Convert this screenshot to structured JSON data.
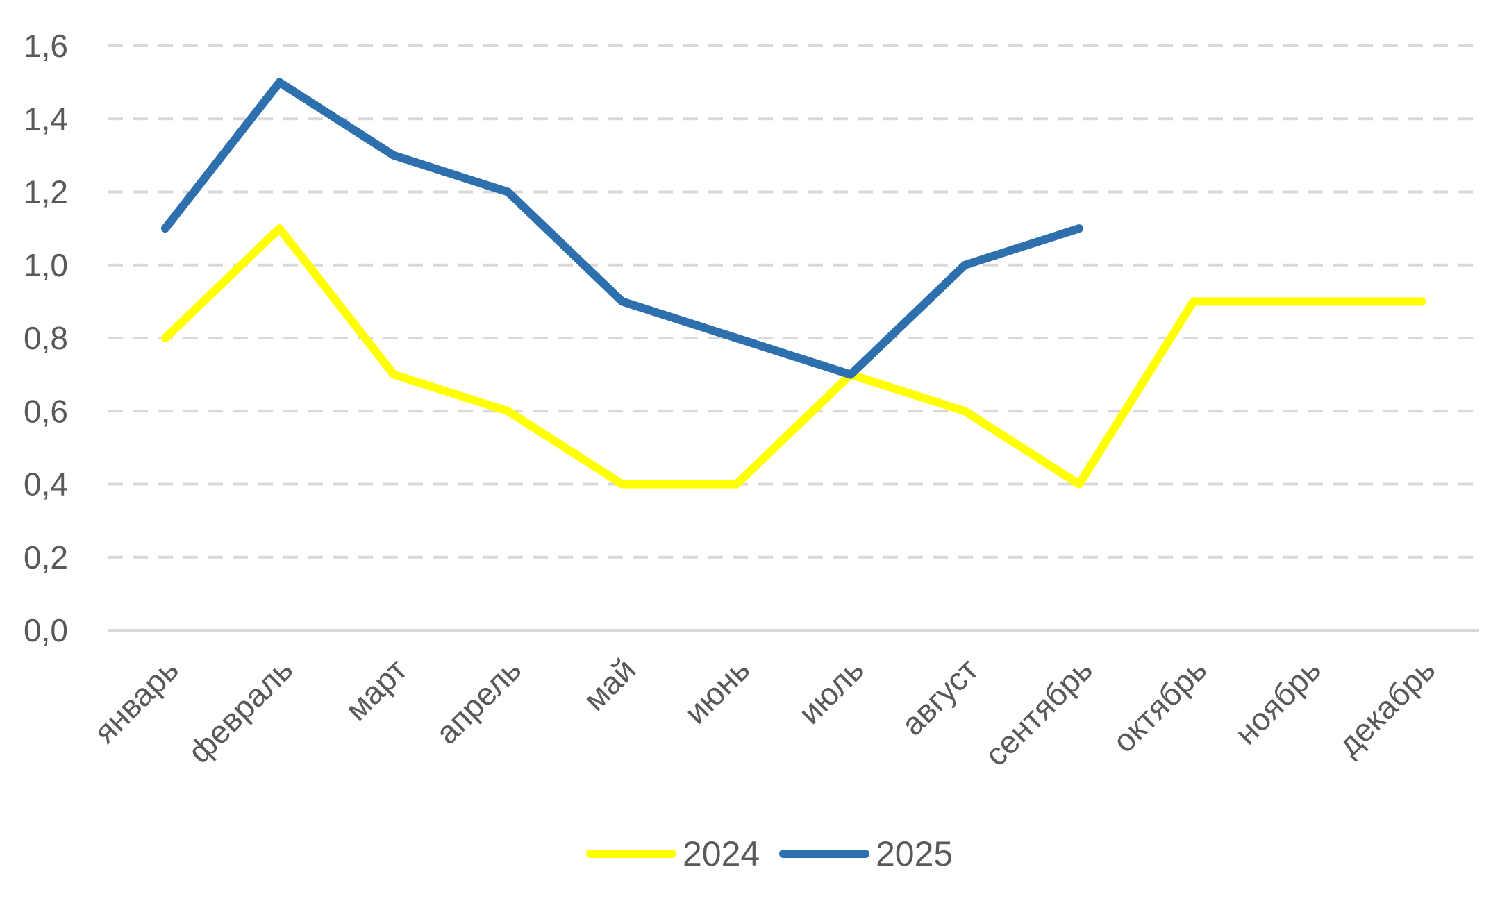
{
  "chart_data": {
    "type": "line",
    "title": "",
    "xlabel": "",
    "ylabel": "",
    "categories": [
      "январь",
      "февраль",
      "март",
      "апрель",
      "май",
      "июнь",
      "июль",
      "август",
      "сентябрь",
      "октябрь",
      "ноябрь",
      "декабрь"
    ],
    "y_ticks": [
      "0,0",
      "0,2",
      "0,4",
      "0,6",
      "0,8",
      "1,0",
      "1,2",
      "1,4",
      "1,6"
    ],
    "ylim": [
      0,
      1.6
    ],
    "grid": true,
    "legend_position": "bottom",
    "series": [
      {
        "name": "2024",
        "color": "#ffff00",
        "values": [
          0.8,
          1.1,
          0.7,
          0.6,
          0.4,
          0.4,
          0.7,
          0.6,
          0.4,
          0.9,
          0.9,
          0.9
        ]
      },
      {
        "name": "2025",
        "color": "#2e6fad",
        "values": [
          1.1,
          1.5,
          1.3,
          1.2,
          0.9,
          0.8,
          0.7,
          1.0,
          1.1,
          null,
          null,
          null
        ]
      }
    ],
    "gridline_color": "#d9d9d9",
    "text_color": "#595959"
  }
}
